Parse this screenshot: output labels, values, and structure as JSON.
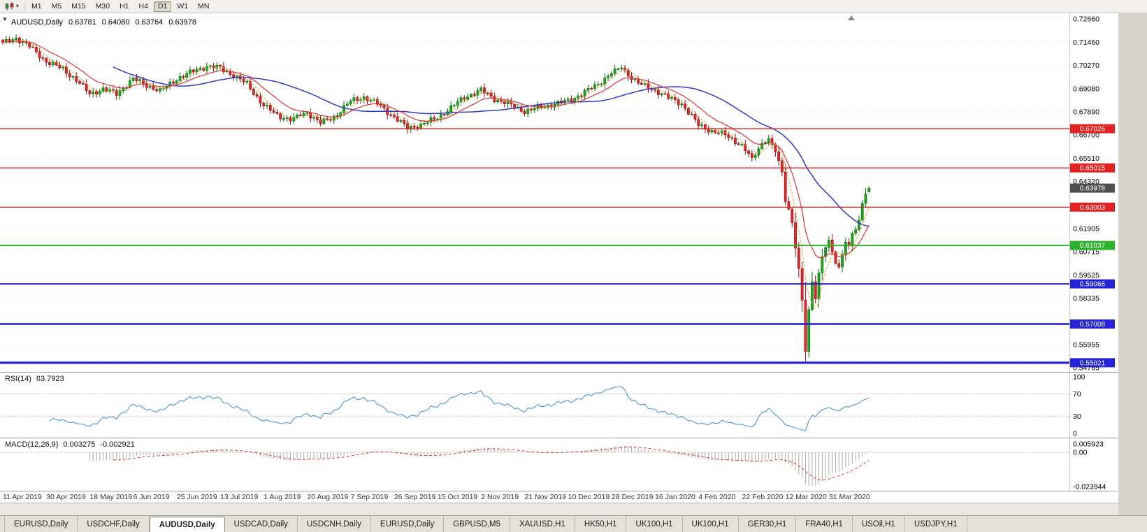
{
  "toolbar": {
    "timeframes": [
      {
        "label": "M1",
        "active": false
      },
      {
        "label": "M5",
        "active": false
      },
      {
        "label": "M15",
        "active": false
      },
      {
        "label": "M30",
        "active": false
      },
      {
        "label": "H1",
        "active": false
      },
      {
        "label": "H4",
        "active": false
      },
      {
        "label": "D1",
        "active": true
      },
      {
        "label": "W1",
        "active": false
      },
      {
        "label": "MN",
        "active": false
      }
    ]
  },
  "chart_header": {
    "symbol": "AUDUSD,Daily",
    "open": "0.63781",
    "high": "0.64080",
    "low": "0.63764",
    "close": "0.63978"
  },
  "indicators": {
    "rsi": {
      "title": "RSI(14)",
      "value": "63.7923",
      "axis_labels": [
        "100",
        "70",
        "30",
        "0"
      ],
      "dotted_levels": [
        70,
        30
      ],
      "line_color": "#4f97d3"
    },
    "macd": {
      "title": "MACD(12,26,9)",
      "main_value": "0.003275",
      "signal_value": "-0.002921",
      "axis_labels": [
        "0.005923",
        "0.00",
        "-0.023944"
      ],
      "histogram_color": "#a9a9a9",
      "signal_color": "#d23a3a"
    }
  },
  "chart_data": {
    "type": "candlestick",
    "symbol": "AUDUSD",
    "timeframe": "Daily",
    "ohlc_last": {
      "open": 0.63781,
      "high": 0.6408,
      "low": 0.63764,
      "close": 0.63978
    },
    "candle_count": 260,
    "close_anchors": [
      [
        0,
        0.714
      ],
      [
        4,
        0.7168
      ],
      [
        8,
        0.7125
      ],
      [
        13,
        0.7048
      ],
      [
        18,
        0.7008
      ],
      [
        22,
        0.6952
      ],
      [
        26,
        0.6882
      ],
      [
        30,
        0.6906
      ],
      [
        34,
        0.6882
      ],
      [
        39,
        0.6958
      ],
      [
        43,
        0.6926
      ],
      [
        47,
        0.6896
      ],
      [
        52,
        0.6958
      ],
      [
        57,
        0.6998
      ],
      [
        61,
        0.7022
      ],
      [
        65,
        0.7014
      ],
      [
        69,
        0.6976
      ],
      [
        73,
        0.6932
      ],
      [
        78,
        0.6822
      ],
      [
        82,
        0.6772
      ],
      [
        86,
        0.6748
      ],
      [
        89,
        0.6772
      ],
      [
        91,
        0.6786
      ],
      [
        95,
        0.6732
      ],
      [
        99,
        0.6762
      ],
      [
        104,
        0.6844
      ],
      [
        108,
        0.6864
      ],
      [
        112,
        0.683
      ],
      [
        117,
        0.6762
      ],
      [
        121,
        0.6706
      ],
      [
        125,
        0.6722
      ],
      [
        130,
        0.676
      ],
      [
        134,
        0.681
      ],
      [
        138,
        0.6864
      ],
      [
        143,
        0.69
      ],
      [
        147,
        0.6856
      ],
      [
        151,
        0.683
      ],
      [
        156,
        0.6792
      ],
      [
        160,
        0.681
      ],
      [
        164,
        0.6826
      ],
      [
        169,
        0.6846
      ],
      [
        173,
        0.688
      ],
      [
        177,
        0.692
      ],
      [
        182,
        0.6988
      ],
      [
        185,
        0.7018
      ],
      [
        188,
        0.6962
      ],
      [
        191,
        0.6926
      ],
      [
        195,
        0.69
      ],
      [
        199,
        0.6862
      ],
      [
        203,
        0.683
      ],
      [
        208,
        0.6722
      ],
      [
        212,
        0.669
      ],
      [
        216,
        0.6672
      ],
      [
        221,
        0.6616
      ],
      [
        224,
        0.6546
      ],
      [
        227,
        0.6628
      ],
      [
        229,
        0.665
      ],
      [
        231,
        0.6586
      ],
      [
        233,
        0.648
      ],
      [
        234,
        0.6332
      ],
      [
        235,
        0.629
      ],
      [
        236,
        0.6222
      ],
      [
        237,
        0.6092
      ],
      [
        238,
        0.5982
      ],
      [
        239,
        0.5822
      ],
      [
        240,
        0.556
      ],
      [
        241,
        0.5772
      ],
      [
        242,
        0.592
      ],
      [
        243,
        0.5832
      ],
      [
        244,
        0.5962
      ],
      [
        245,
        0.6048
      ],
      [
        246,
        0.6092
      ],
      [
        247,
        0.6128
      ],
      [
        248,
        0.6072
      ],
      [
        249,
        0.6012
      ],
      [
        250,
        0.5992
      ],
      [
        251,
        0.6062
      ],
      [
        252,
        0.6122
      ],
      [
        253,
        0.6102
      ],
      [
        254,
        0.6168
      ],
      [
        255,
        0.6182
      ],
      [
        256,
        0.6232
      ],
      [
        257,
        0.6322
      ],
      [
        258,
        0.6368
      ],
      [
        259,
        0.63978
      ]
    ],
    "crash_low": {
      "index": 240,
      "price": 0.551
    },
    "price_axis": {
      "max": 0.7266,
      "min": 0.54765,
      "tick_labels": [
        "0.72660",
        "0.71460",
        "0.70270",
        "0.69080",
        "0.67890",
        "0.66700",
        "0.65510",
        "0.64320",
        "0.61905",
        "0.60715",
        "0.59525",
        "0.58335",
        "0.55955",
        "0.54765"
      ]
    },
    "levels": [
      {
        "price": 0.67026,
        "label": "0.67026",
        "color": "#e02222",
        "width": 1.4
      },
      {
        "price": 0.65015,
        "label": "0.65015",
        "color": "#e02222",
        "width": 1.4
      },
      {
        "price": 0.63003,
        "label": "0.63003",
        "color": "#e02222",
        "width": 1.4
      },
      {
        "price": 0.61037,
        "label": "0.61037",
        "color": "#2fb32f",
        "width": 2
      },
      {
        "price": 0.59066,
        "label": "0.59066",
        "color": "#2424d6",
        "width": 2
      },
      {
        "price": 0.57008,
        "label": "0.57008",
        "color": "#2424d6",
        "width": 2.6
      },
      {
        "price": 0.55021,
        "label": "0.55021",
        "color": "#2424d6",
        "width": 3.2
      }
    ],
    "current_price": {
      "value": 0.63978,
      "label": "0.63978",
      "box_color": "#4f4f4f"
    },
    "moving_averages": [
      {
        "period": 34,
        "type": "sma",
        "color": "#2e3bbf",
        "width": 1.5,
        "dash": ""
      },
      {
        "period": 13,
        "type": "ema",
        "color": "#dd3333",
        "width": 1.2,
        "dash": ""
      },
      {
        "period": 5,
        "type": "sma",
        "color": "#dfa62f",
        "width": 1,
        "dash": "3 2"
      }
    ],
    "candle_colors": {
      "up_fill": "#1fa51f",
      "up_stroke": "#0b6e0b",
      "down_fill": "#e22828",
      "down_stroke": "#8f0f0f"
    },
    "x_axis_dates": [
      "11 Apr 2019",
      "30 Apr 2019",
      "18 May 2019",
      "6 Jun 2019",
      "25 Jun 2019",
      "13 Jul 2019",
      "1 Aug 2019",
      "20 Aug 2019",
      "7 Sep 2019",
      "26 Sep 2019",
      "15 Oct 2019",
      "2 Nov 2019",
      "21 Nov 2019",
      "10 Dec 2019",
      "28 Dec 2019",
      "16 Jan 2020",
      "4 Feb 2020",
      "22 Feb 2020",
      "12 Mar 2020",
      "31 Mar 2020"
    ]
  },
  "tabs": [
    {
      "label": "EURUSD,Daily",
      "active": false
    },
    {
      "label": "USDCHF,Daily",
      "active": false
    },
    {
      "label": "AUDUSD,Daily",
      "active": true
    },
    {
      "label": "USDCAD,Daily",
      "active": false
    },
    {
      "label": "USDCNH,Daily",
      "active": false
    },
    {
      "label": "EURUSD,Daily",
      "active": false
    },
    {
      "label": "GBPUSD,M5",
      "active": false
    },
    {
      "label": "XAUUSD,H1",
      "active": false
    },
    {
      "label": "HK50,H1",
      "active": false
    },
    {
      "label": "UK100,H1",
      "active": false
    },
    {
      "label": "UK100,H1",
      "active": false
    },
    {
      "label": "GER30,H1",
      "active": false
    },
    {
      "label": "FRA40,H1",
      "active": false
    },
    {
      "label": "USOil,H1",
      "active": false
    },
    {
      "label": "USDJPY,H1",
      "active": false
    }
  ]
}
